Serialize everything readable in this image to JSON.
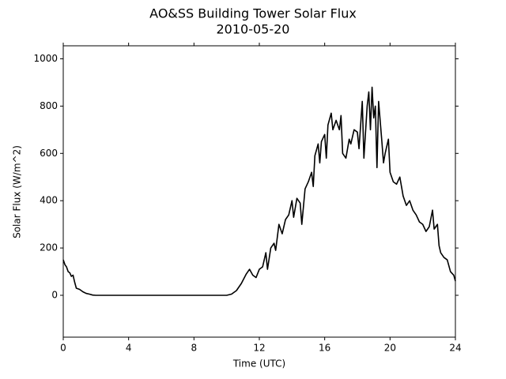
{
  "chart_data": {
    "type": "line",
    "title": "AO&SS Building Tower Solar Flux",
    "subtitle": "2010-05-20",
    "x_label": "Time (UTC)",
    "y_label": "Solar Flux (W/m^2)",
    "xlim": [
      0,
      24
    ],
    "xticks": [
      0,
      4,
      8,
      12,
      16,
      20,
      24
    ],
    "ylim": [
      -177,
      1055
    ],
    "yticks": [
      0,
      200,
      400,
      600,
      800,
      1000
    ],
    "grid": false,
    "series": [
      {
        "name": "Solar Flux",
        "color": "#000000",
        "x": [
          0,
          0.1,
          0.2,
          0.3,
          0.4,
          0.5,
          0.6,
          0.7,
          0.8,
          1.0,
          1.2,
          1.4,
          1.6,
          1.8,
          2.0,
          10.0,
          10.3,
          10.6,
          10.9,
          11.2,
          11.4,
          11.6,
          11.8,
          12.0,
          12.2,
          12.4,
          12.5,
          12.7,
          12.9,
          13.0,
          13.2,
          13.4,
          13.6,
          13.8,
          14.0,
          14.1,
          14.3,
          14.5,
          14.6,
          14.8,
          15.0,
          15.2,
          15.3,
          15.4,
          15.6,
          15.7,
          15.8,
          16.0,
          16.1,
          16.2,
          16.4,
          16.5,
          16.7,
          16.9,
          17.0,
          17.1,
          17.3,
          17.5,
          17.6,
          17.8,
          18.0,
          18.1,
          18.3,
          18.4,
          18.6,
          18.7,
          18.8,
          18.9,
          19.0,
          19.1,
          19.2,
          19.3,
          19.5,
          19.6,
          19.7,
          19.9,
          20.0,
          20.2,
          20.4,
          20.6,
          20.8,
          21.0,
          21.2,
          21.4,
          21.6,
          21.8,
          22.0,
          22.2,
          22.4,
          22.6,
          22.7,
          22.9,
          23.0,
          23.1,
          23.3,
          23.5,
          23.7,
          23.9,
          24.0
        ],
        "values": [
          150,
          130,
          120,
          100,
          95,
          80,
          85,
          55,
          30,
          25,
          15,
          8,
          5,
          1,
          0,
          0,
          5,
          20,
          50,
          90,
          110,
          85,
          75,
          110,
          120,
          180,
          110,
          200,
          220,
          190,
          300,
          260,
          320,
          340,
          400,
          330,
          410,
          390,
          300,
          450,
          480,
          520,
          460,
          590,
          640,
          560,
          650,
          680,
          580,
          720,
          770,
          700,
          740,
          700,
          760,
          600,
          580,
          660,
          640,
          700,
          690,
          620,
          820,
          580,
          800,
          860,
          700,
          880,
          750,
          800,
          540,
          820,
          650,
          560,
          600,
          660,
          520,
          480,
          470,
          500,
          420,
          380,
          400,
          360,
          340,
          310,
          300,
          270,
          290,
          360,
          280,
          300,
          210,
          180,
          160,
          150,
          100,
          85,
          60
        ]
      }
    ]
  }
}
